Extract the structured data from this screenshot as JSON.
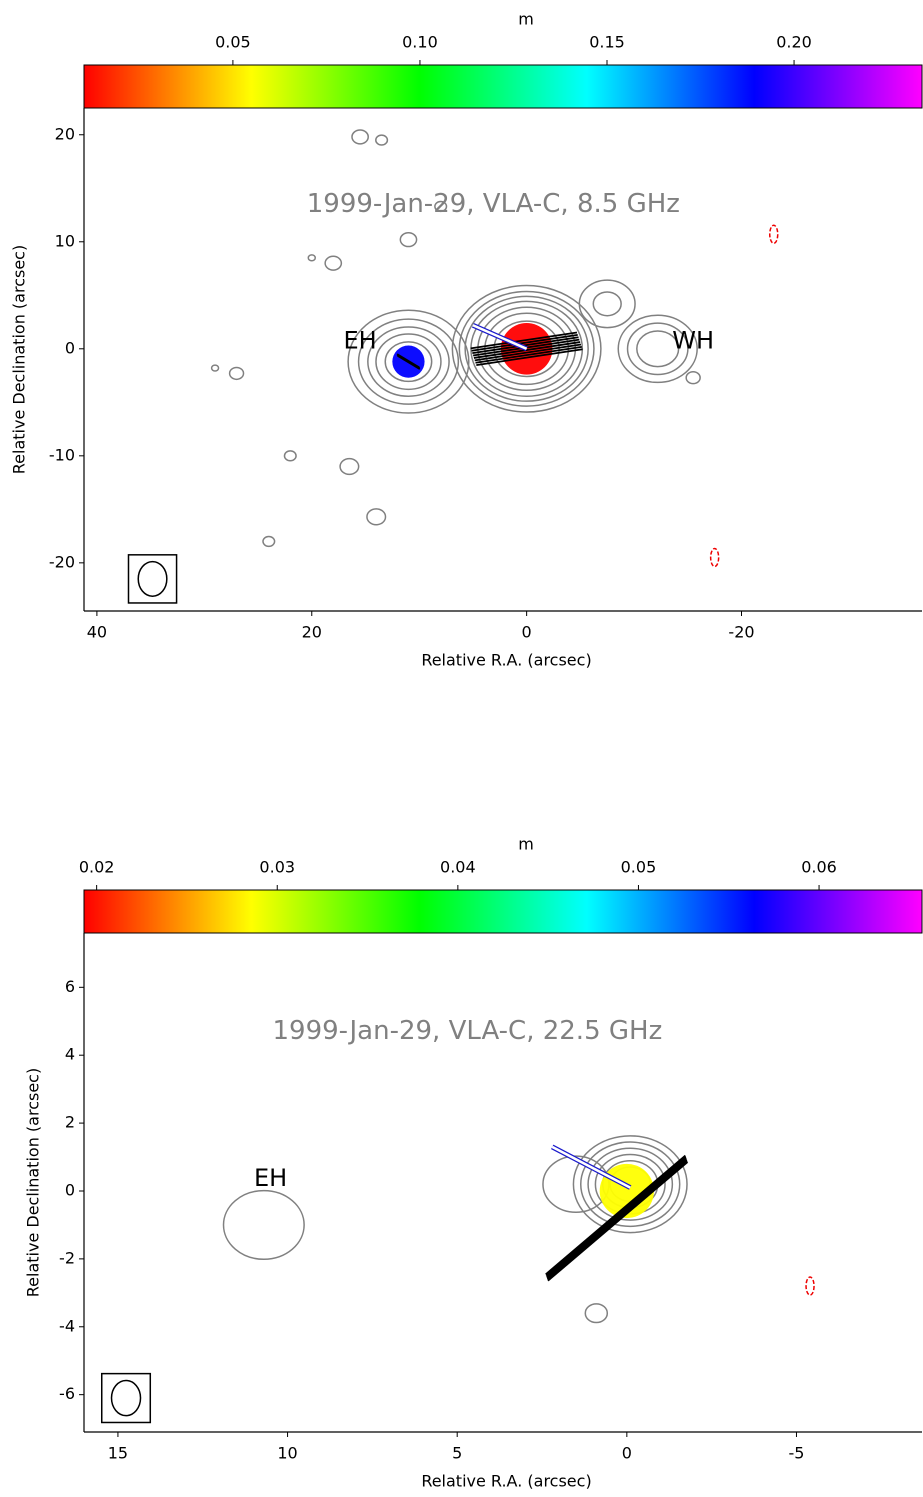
{
  "chart_data": [
    {
      "type": "contour",
      "title": "1999-Jan-29, VLA-C, 8.5 GHz",
      "xlabel": "Relative R.A. (arcsec)",
      "ylabel": "Relative Declination (arcsec)",
      "xlim": [
        41.2,
        -36.8
      ],
      "ylim": [
        -24.5,
        22.5
      ],
      "xticks": [
        40,
        20,
        0,
        -20
      ],
      "yticks": [
        20,
        10,
        0,
        -10,
        -20
      ],
      "colorbar_label": "m",
      "clim": [
        0.0102,
        0.2342
      ],
      "colorbar_ticks": [
        0.05,
        {
          "value": 0.1,
          "label": "0.10"
        },
        0.15,
        {
          "value": 0.2,
          "label": "0.20"
        }
      ],
      "colormap": [
        "#ff0000",
        "#ffff00",
        "#00ff00",
        "#00ffff",
        "#0000ff",
        "#ff00ff"
      ],
      "annotations": [
        "EH",
        "WH"
      ]
    },
    {
      "type": "contour",
      "title": "1999-Jan-29, VLA-C, 22.5 GHz",
      "xlabel": "Relative R.A. (arcsec)",
      "ylabel": "Relative Declination (arcsec)",
      "xlim": [
        16.0,
        -8.7
      ],
      "ylim": [
        -7.1,
        7.6
      ],
      "xticks": [
        15,
        10,
        5,
        0,
        -5
      ],
      "yticks": [
        6,
        4,
        2,
        0,
        -2,
        -4,
        -6
      ],
      "colorbar_label": "m",
      "clim": [
        0.0193,
        0.0657
      ],
      "colorbar_ticks": [
        0.02,
        0.03,
        0.04,
        0.05,
        0.06
      ],
      "colormap": [
        "#ff0000",
        "#ffff00",
        "#00ff00",
        "#00ffff",
        "#0000ff",
        "#ff00ff"
      ],
      "annotations": [
        "EH"
      ]
    }
  ]
}
